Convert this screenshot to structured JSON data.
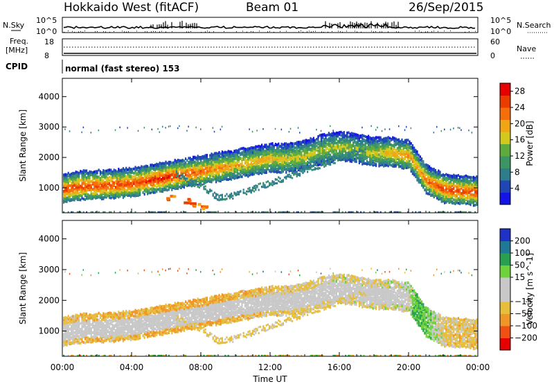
{
  "header": {
    "station": "Hokkaido West (fitACF)",
    "beam": "Beam 01",
    "date": "26/Sep/2015"
  },
  "aux_panels": {
    "nsky_label": "N.Sky",
    "nsearch_label": "N.Search",
    "noise_ticks": [
      "10^5",
      "10^0"
    ],
    "freq_label": "Freq.",
    "freq_unit": "[MHz]",
    "freq_ticks": [
      "18",
      "8"
    ],
    "nave_label": "Nave",
    "nave_ticks": [
      "60",
      "0"
    ],
    "cpid_label": "CPID",
    "cpid_value": "normal (fast stereo) 153"
  },
  "colors": {
    "power_scale": [
      "#1414e6",
      "#1e46b4",
      "#2d7d8c",
      "#3c9664",
      "#5faa3c",
      "#d2c81e",
      "#f0a514",
      "#f56e0a",
      "#eb3c00",
      "#e60000"
    ],
    "velocity_scale": [
      "#e60000",
      "#f05014",
      "#f09628",
      "#e6be3c",
      "#c8c8c8",
      "#c8c8c8",
      "#6ed23c",
      "#28a050",
      "#1e7896",
      "#1e32c8"
    ]
  },
  "chart_data": [
    {
      "type": "heatmap",
      "name": "power",
      "xlabel": "",
      "ylabel": "Slant Range [km]",
      "xlim": [
        "00:00",
        "24:00"
      ],
      "ylim": [
        180,
        4600
      ],
      "y_ticks": [
        1000,
        2000,
        3000,
        4000
      ],
      "x_ticks": [
        "00:00",
        "04:00",
        "08:00",
        "12:00",
        "16:00",
        "20:00",
        "00:00"
      ],
      "colorbar": {
        "label": "Power [dB]",
        "range": [
          0,
          30
        ],
        "ticks": [
          4,
          8,
          12,
          16,
          20,
          24,
          28
        ]
      },
      "main_echo_band": {
        "time_h": [
          0,
          1,
          2,
          3,
          4,
          5,
          6,
          7,
          8,
          9,
          10,
          11,
          12,
          13,
          14,
          15,
          16,
          17,
          18,
          19,
          20,
          20.5,
          21,
          22,
          23,
          24
        ],
        "range_km": [
          1000,
          1100,
          1120,
          1150,
          1200,
          1300,
          1400,
          1500,
          1600,
          1700,
          1800,
          1900,
          2000,
          2000,
          2100,
          2300,
          2400,
          2300,
          2200,
          2200,
          2100,
          1700,
          1300,
          1000,
          950,
          900
        ],
        "peak_power_db": [
          26,
          26,
          26,
          26,
          26,
          27,
          28,
          26,
          24,
          22,
          20,
          20,
          20,
          18,
          18,
          16,
          16,
          16,
          18,
          20,
          22,
          20,
          24,
          26,
          26,
          26
        ]
      },
      "descending_echo": {
        "time_h": [
          6.5,
          7.0,
          7.5,
          8.0,
          8.5,
          9.0,
          10.0,
          11.0,
          12.0,
          13.0,
          14.0,
          15.0,
          16.0,
          17.0,
          17.5
        ],
        "range_km": [
          1500,
          1400,
          1200,
          1100,
          900,
          700,
          800,
          1000,
          1200,
          1400,
          1600,
          1800,
          2000,
          2200,
          2300
        ],
        "power_db": 6
      },
      "near_range_echo": {
        "time_h": [
          6.0,
          7.0,
          7.5,
          8.0
        ],
        "range_km": [
          700,
          600,
          500,
          400
        ],
        "power_db": 20
      },
      "sporadic_range_km": [
        3000,
        2900
      ]
    },
    {
      "type": "heatmap",
      "name": "velocity",
      "xlabel": "Time UT",
      "ylabel": "Slant Range [km]",
      "xlim": [
        "00:00",
        "24:00"
      ],
      "ylim": [
        180,
        4600
      ],
      "y_ticks": [
        1000,
        2000,
        3000,
        4000
      ],
      "x_ticks": [
        "00:00",
        "04:00",
        "08:00",
        "12:00",
        "16:00",
        "20:00",
        "00:00"
      ],
      "colorbar": {
        "label": "Velocity [m s^-1]",
        "range": [
          -250,
          250
        ],
        "ticks": [
          -200,
          -100,
          -50,
          -15,
          15,
          50,
          100,
          200
        ],
        "tick_labels": [
          "−200",
          "−100",
          "−50",
          "−15",
          "15",
          "50",
          "100",
          "200"
        ]
      },
      "ground_scatter_velocity": 0,
      "echo_velocity": {
        "time_h": [
          0,
          2,
          4,
          6,
          8,
          10,
          12,
          14,
          16,
          18,
          20,
          20.5,
          21,
          22,
          24
        ],
        "velocity_ms": [
          -30,
          -40,
          -40,
          -50,
          -60,
          -40,
          -30,
          -20,
          -10,
          -10,
          0,
          60,
          40,
          -20,
          -30
        ]
      }
    }
  ]
}
